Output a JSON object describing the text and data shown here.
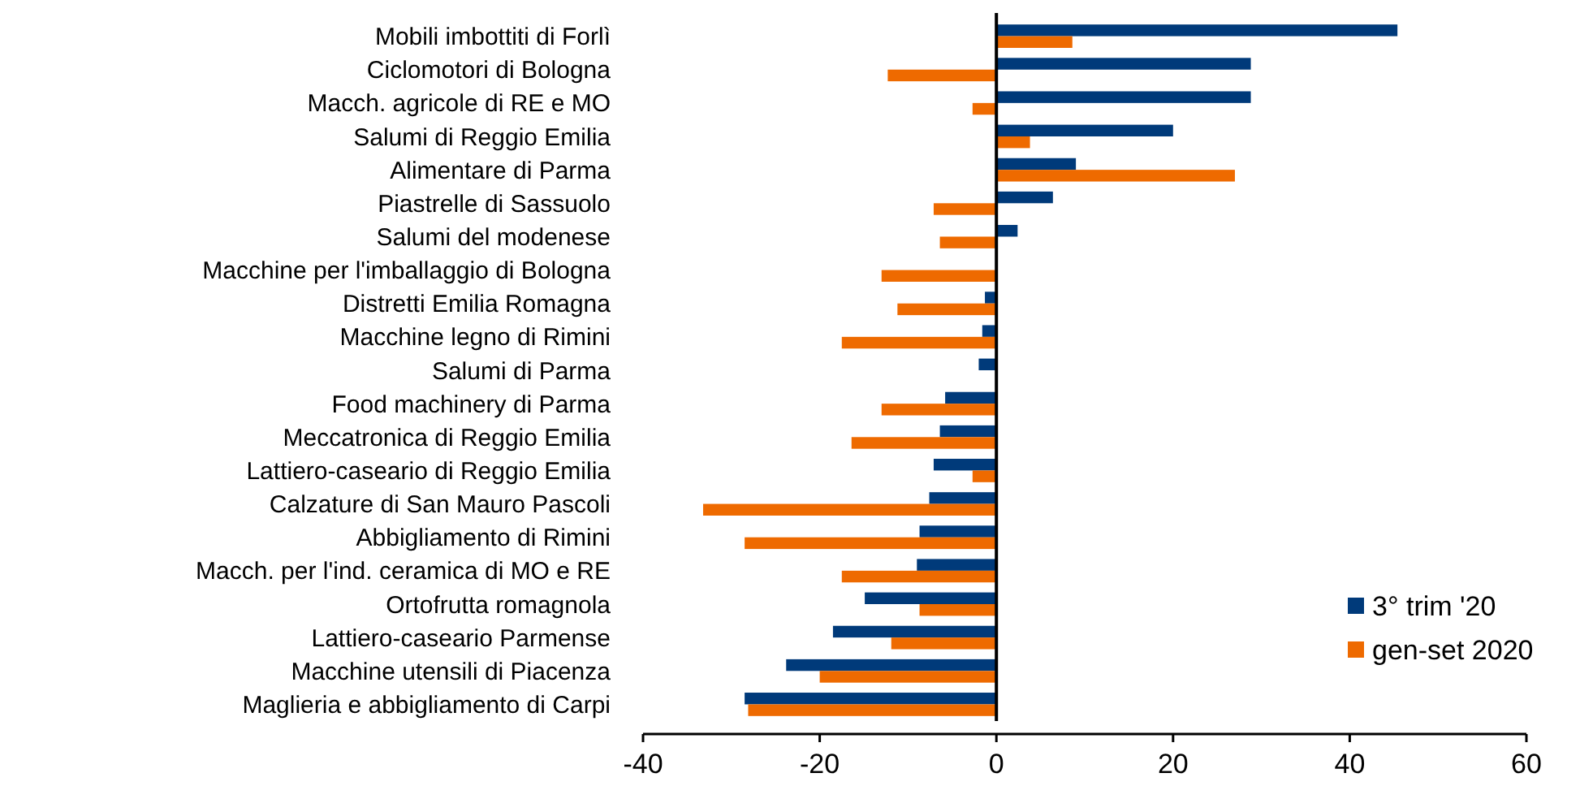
{
  "chart_data": {
    "type": "bar",
    "orientation": "horizontal",
    "categories": [
      "Mobili imbottiti di Forlì",
      "Ciclomotori di Bologna",
      "Macch. agricole di RE e MO",
      "Salumi di Reggio Emilia",
      "Alimentare di Parma",
      "Piastrelle di Sassuolo",
      "Salumi del modenese",
      "Macchine per l'imballaggio di Bologna",
      "Distretti Emilia Romagna",
      "Macchine legno di Rimini",
      "Salumi di Parma",
      "Food machinery di Parma",
      "Meccatronica di Reggio Emilia",
      "Lattiero-caseario di Reggio Emilia",
      "Calzature di San Mauro Pascoli",
      "Abbigliamento di Rimini",
      "Macch. per l'ind. ceramica di MO e RE",
      "Ortofrutta romagnola",
      "Lattiero-caseario Parmense",
      "Macchine utensili di Piacenza",
      "Maglieria e abbigliamento di Carpi"
    ],
    "series": [
      {
        "name": "3° trim '20",
        "color": "#003a7a",
        "values": [
          45.4,
          28.8,
          28.8,
          20.0,
          9.0,
          6.4,
          2.4,
          null,
          -1.3,
          -1.6,
          -2.0,
          -5.8,
          -6.4,
          -7.1,
          -7.6,
          -8.7,
          -9.0,
          -14.9,
          -18.5,
          -23.8,
          -28.5
        ]
      },
      {
        "name": "gen-set 2020",
        "color": "#ee6a00",
        "values": [
          8.6,
          -12.3,
          -2.7,
          3.8,
          27.0,
          -7.1,
          -6.4,
          -13.0,
          -11.2,
          -17.5,
          null,
          -13.0,
          -16.4,
          -2.7,
          -33.2,
          -28.5,
          -17.5,
          -8.7,
          -11.9,
          -20.0,
          -28.1
        ]
      }
    ],
    "xlim": [
      -40,
      60
    ],
    "xticks": [
      -40,
      -20,
      0,
      20,
      40,
      60
    ],
    "ref_lines": [
      {
        "axis": "x",
        "value": 0,
        "color": "#000000"
      }
    ],
    "legend": "bottom right"
  }
}
